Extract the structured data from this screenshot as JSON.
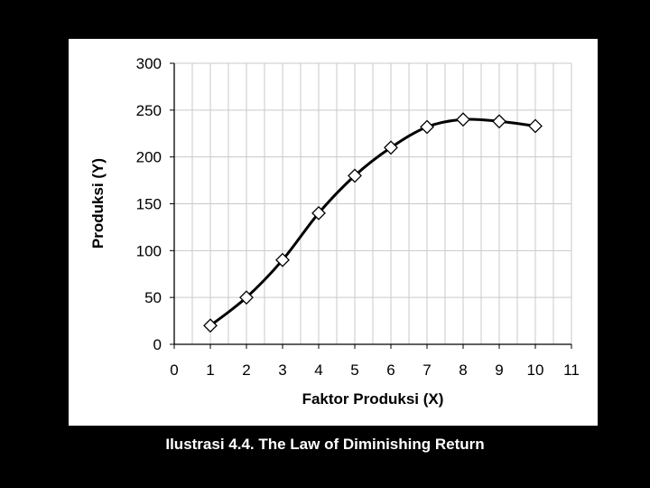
{
  "caption": "Ilustrasi 4.4. The Law of Diminishing Return",
  "chart_data": {
    "type": "line",
    "title": "",
    "xlabel": "Faktor Produksi (X)",
    "ylabel": "Produksi (Y)",
    "xlim": [
      0,
      11
    ],
    "ylim": [
      0,
      300
    ],
    "xticks": [
      0,
      1,
      2,
      3,
      4,
      5,
      6,
      7,
      8,
      9,
      10,
      11
    ],
    "yticks": [
      0,
      50,
      100,
      150,
      200,
      250,
      300
    ],
    "x_minor_grid_step": 0.5,
    "grid": true,
    "legend": "none",
    "line_color": "#000000",
    "marker": "diamond",
    "marker_fill": "#ffffff",
    "series": [
      {
        "x": [
          1,
          2,
          3,
          4,
          5,
          6,
          7,
          8,
          9,
          10
        ],
        "values": [
          20,
          50,
          90,
          140,
          180,
          210,
          232,
          240,
          238,
          233
        ]
      }
    ]
  }
}
